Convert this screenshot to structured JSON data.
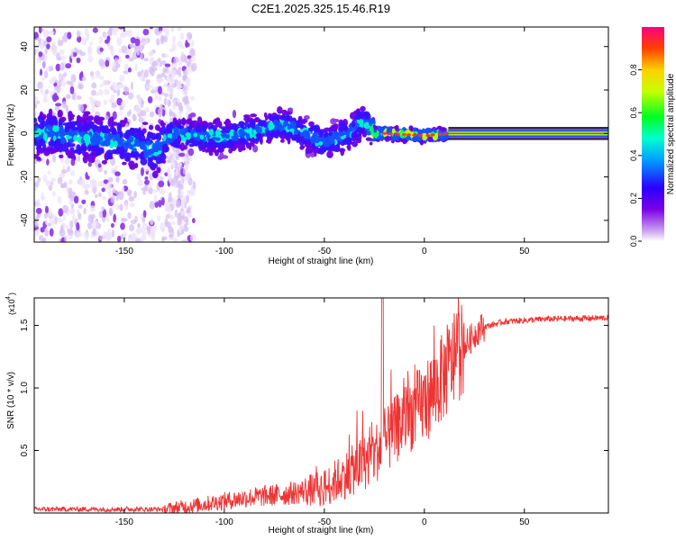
{
  "title": "C2E1.2025.325.15.46.R19",
  "chart_data": [
    {
      "type": "heatmap",
      "name": "spectrogram",
      "xlabel": "Height of straight line (km)",
      "ylabel": "Frequency (Hz)",
      "xlim": [
        -195,
        92
      ],
      "ylim": [
        -50,
        49
      ],
      "xticks": [
        -150,
        -100,
        -50,
        0,
        50
      ],
      "yticks": [
        -40,
        -20,
        0,
        20,
        40
      ],
      "colorbar": {
        "label": "Normalized spectral amplitude",
        "range": [
          0,
          1
        ],
        "ticks": [
          0.0,
          0.2,
          0.4,
          0.6,
          0.8
        ]
      },
      "ridge": [
        {
          "x": -190,
          "f": 0
        },
        {
          "x": -150,
          "f": -4
        },
        {
          "x": -135,
          "f": -8
        },
        {
          "x": -125,
          "f": 0
        },
        {
          "x": -100,
          "f": -2
        },
        {
          "x": -80,
          "f": 2
        },
        {
          "x": -70,
          "f": 4
        },
        {
          "x": -50,
          "f": -4
        },
        {
          "x": -40,
          "f": -1
        },
        {
          "x": -30,
          "f": 6
        },
        {
          "x": -25,
          "f": 0
        },
        {
          "x": -20,
          "f": 0
        },
        {
          "x": 0,
          "f": -1
        },
        {
          "x": 12,
          "f": 0
        },
        {
          "x": 90,
          "f": 0
        }
      ]
    },
    {
      "type": "line",
      "name": "snr",
      "xlabel": "Height of straight line (km)",
      "ylabel": "SNR (10 * v/v)",
      "yscale_label": "(x10",
      "yscale_exponent": "4",
      "xlim": [
        -195,
        92
      ],
      "ylim": [
        0,
        1.72
      ],
      "xticks": [
        -150,
        -100,
        -50,
        0,
        50
      ],
      "yticks": [
        0.5,
        1.0,
        1.5
      ],
      "ytick_labels": [
        "0.5",
        "1.0",
        "1.5"
      ],
      "color": "#ee3333",
      "trend": [
        {
          "x": -195,
          "y": 0.03
        },
        {
          "x": -130,
          "y": 0.03
        },
        {
          "x": -110,
          "y": 0.07
        },
        {
          "x": -90,
          "y": 0.12
        },
        {
          "x": -70,
          "y": 0.15
        },
        {
          "x": -50,
          "y": 0.2
        },
        {
          "x": -40,
          "y": 0.3
        },
        {
          "x": -30,
          "y": 0.4
        },
        {
          "x": -20,
          "y": 0.55
        },
        {
          "x": -10,
          "y": 0.75
        },
        {
          "x": 0,
          "y": 0.88
        },
        {
          "x": 10,
          "y": 1.1
        },
        {
          "x": 18,
          "y": 1.3
        },
        {
          "x": 28,
          "y": 1.48
        },
        {
          "x": 40,
          "y": 1.53
        },
        {
          "x": 60,
          "y": 1.55
        },
        {
          "x": 92,
          "y": 1.56
        }
      ]
    }
  ]
}
